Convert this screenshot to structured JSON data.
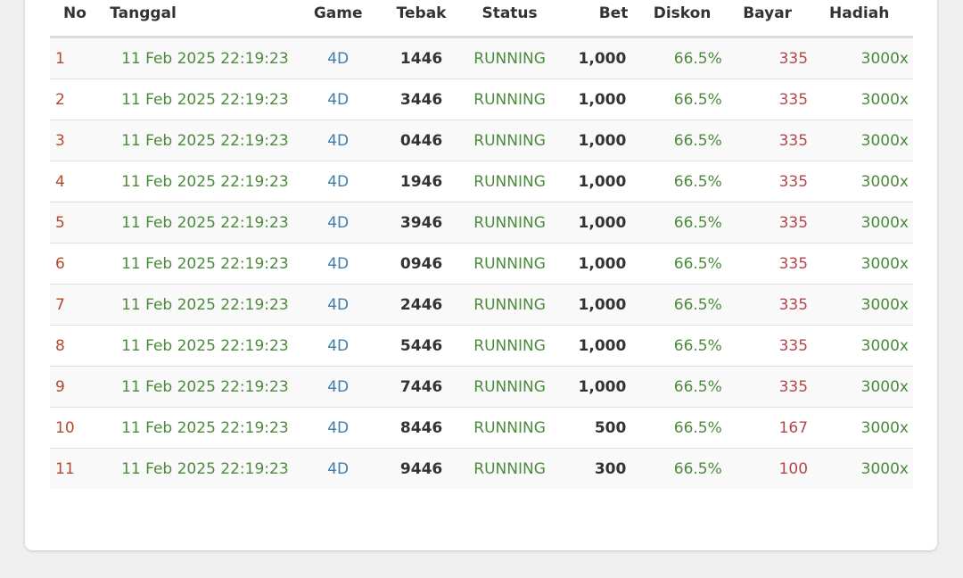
{
  "headers": {
    "no": "No",
    "tanggal": "Tanggal",
    "game": "Game",
    "tebak": "Tebak",
    "status": "Status",
    "bet": "Bet",
    "diskon": "Diskon",
    "bayar": "Bayar",
    "hadiah": "Hadiah"
  },
  "rows": [
    {
      "no": "1",
      "tanggal": "11 Feb 2025 22:19:23",
      "game": "4D",
      "tebak": "1446",
      "status": "RUNNING",
      "bet": "1,000",
      "diskon": "66.5%",
      "bayar": "335",
      "hadiah": "3000x"
    },
    {
      "no": "2",
      "tanggal": "11 Feb 2025 22:19:23",
      "game": "4D",
      "tebak": "3446",
      "status": "RUNNING",
      "bet": "1,000",
      "diskon": "66.5%",
      "bayar": "335",
      "hadiah": "3000x"
    },
    {
      "no": "3",
      "tanggal": "11 Feb 2025 22:19:23",
      "game": "4D",
      "tebak": "0446",
      "status": "RUNNING",
      "bet": "1,000",
      "diskon": "66.5%",
      "bayar": "335",
      "hadiah": "3000x"
    },
    {
      "no": "4",
      "tanggal": "11 Feb 2025 22:19:23",
      "game": "4D",
      "tebak": "1946",
      "status": "RUNNING",
      "bet": "1,000",
      "diskon": "66.5%",
      "bayar": "335",
      "hadiah": "3000x"
    },
    {
      "no": "5",
      "tanggal": "11 Feb 2025 22:19:23",
      "game": "4D",
      "tebak": "3946",
      "status": "RUNNING",
      "bet": "1,000",
      "diskon": "66.5%",
      "bayar": "335",
      "hadiah": "3000x"
    },
    {
      "no": "6",
      "tanggal": "11 Feb 2025 22:19:23",
      "game": "4D",
      "tebak": "0946",
      "status": "RUNNING",
      "bet": "1,000",
      "diskon": "66.5%",
      "bayar": "335",
      "hadiah": "3000x"
    },
    {
      "no": "7",
      "tanggal": "11 Feb 2025 22:19:23",
      "game": "4D",
      "tebak": "2446",
      "status": "RUNNING",
      "bet": "1,000",
      "diskon": "66.5%",
      "bayar": "335",
      "hadiah": "3000x"
    },
    {
      "no": "8",
      "tanggal": "11 Feb 2025 22:19:23",
      "game": "4D",
      "tebak": "5446",
      "status": "RUNNING",
      "bet": "1,000",
      "diskon": "66.5%",
      "bayar": "335",
      "hadiah": "3000x"
    },
    {
      "no": "9",
      "tanggal": "11 Feb 2025 22:19:23",
      "game": "4D",
      "tebak": "7446",
      "status": "RUNNING",
      "bet": "1,000",
      "diskon": "66.5%",
      "bayar": "335",
      "hadiah": "3000x"
    },
    {
      "no": "10",
      "tanggal": "11 Feb 2025 22:19:23",
      "game": "4D",
      "tebak": "8446",
      "status": "RUNNING",
      "bet": "500",
      "diskon": "66.5%",
      "bayar": "167",
      "hadiah": "3000x"
    },
    {
      "no": "11",
      "tanggal": "11 Feb 2025 22:19:23",
      "game": "4D",
      "tebak": "9446",
      "status": "RUNNING",
      "bet": "300",
      "diskon": "66.5%",
      "bayar": "100",
      "hadiah": "3000x"
    }
  ],
  "colors": {
    "no": "#b5492d",
    "tanggal": "#4c8a3c",
    "game": "#3f7ea8",
    "status": "#4c8a3c",
    "bayar": "#b5474b",
    "hadiah": "#4c8a3c"
  }
}
